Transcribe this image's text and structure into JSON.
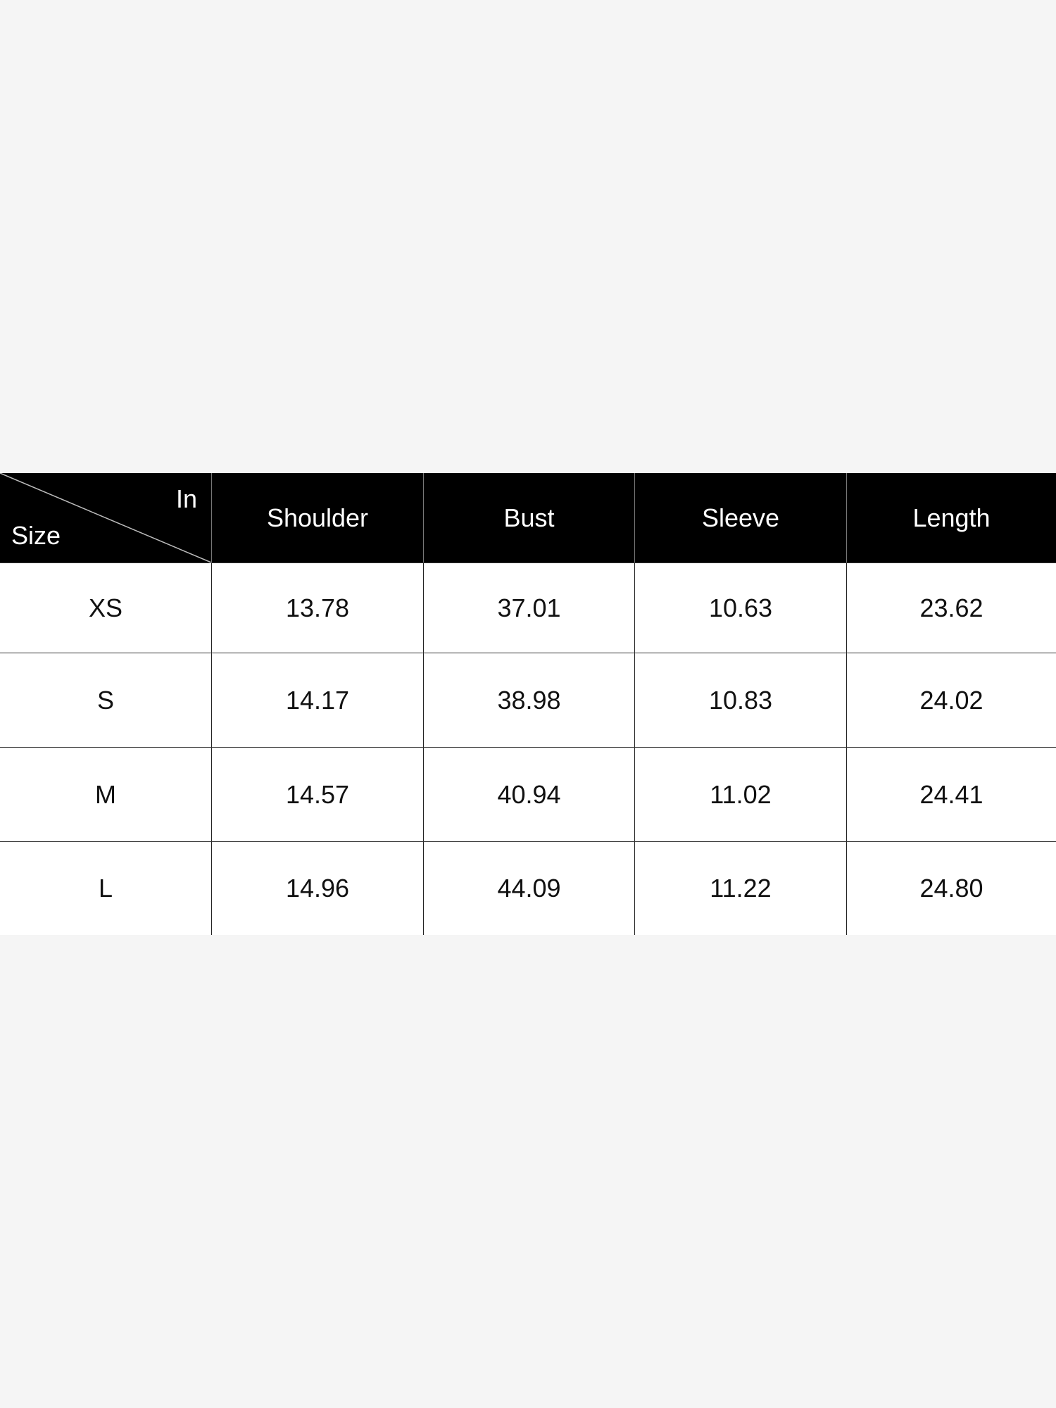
{
  "table": {
    "corner_top_label": "In",
    "corner_bottom_label": "Size",
    "columns": [
      "Shoulder",
      "Bust",
      "Sleeve",
      "Length"
    ],
    "rows": [
      {
        "size": "XS",
        "values": [
          "13.78",
          "37.01",
          "10.63",
          "23.62"
        ]
      },
      {
        "size": "S",
        "values": [
          "14.17",
          "38.98",
          "10.83",
          "24.02"
        ]
      },
      {
        "size": "M",
        "values": [
          "14.57",
          "40.94",
          "11.02",
          "24.41"
        ]
      },
      {
        "size": "L",
        "values": [
          "14.96",
          "44.09",
          "11.22",
          "24.80"
        ]
      }
    ]
  },
  "colors": {
    "header_bg": "#000000",
    "header_text": "#ffffff",
    "body_bg": "#ffffff",
    "page_bg": "#f5f5f5"
  }
}
